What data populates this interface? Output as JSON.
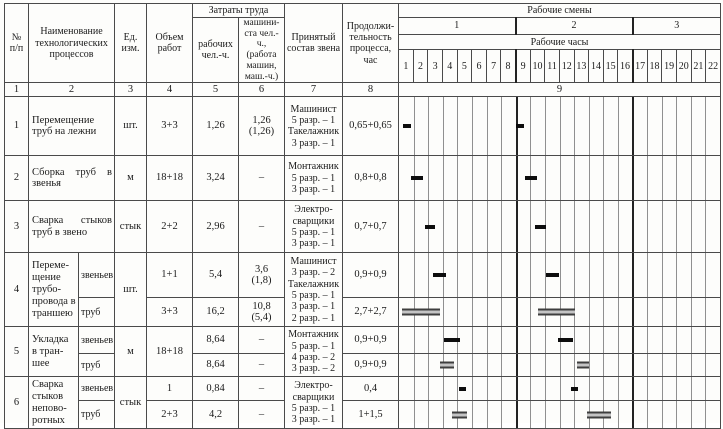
{
  "header": {
    "col_num": "№\nп/п",
    "col_name": "Наименование\nтехнологических\nпроцессов",
    "col_unit": "Ед.\nизм.",
    "col_volume": "Объем\nработ",
    "labor_group": "Затраты труда",
    "col_workers": "рабочих\nчел.-ч.",
    "col_machinist": "машини-\nста чел.-ч.,\n(работа\nмашин,\nмаш.-ч.)",
    "col_crew": "Принятый\nсостав звена",
    "col_duration": "Продолжи-\nтельность\nпроцесса,\nчас",
    "shifts_group": "Рабочие смены",
    "shifts": [
      "1",
      "2",
      "3"
    ],
    "hours_group": "Рабочие часы",
    "hours": [
      "1",
      "2",
      "3",
      "4",
      "5",
      "6",
      "7",
      "8",
      "9",
      "10",
      "11",
      "12",
      "13",
      "14",
      "15",
      "16",
      "17",
      "18",
      "19",
      "20",
      "21",
      "22"
    ],
    "col_numbers": [
      "1",
      "2",
      "3",
      "4",
      "5",
      "6",
      "7",
      "8",
      "9"
    ]
  },
  "rows": {
    "r1": {
      "num": "1",
      "name": "Перемещение труб на лежни",
      "unit": "шт.",
      "volume": "3+3",
      "workers": "1,26",
      "machinist": "1,26\n(1,26)",
      "crew": "Машинист\n5 разр. – 1\nТакелажник\n3 разр. – 1",
      "duration": "0,65+0,65"
    },
    "r2": {
      "num": "2",
      "name": "Сборка труб в звенья",
      "unit": "м",
      "volume": "18+18",
      "workers": "3,24",
      "machinist": "–",
      "crew": "Монтажник\n5 разр. – 1\n3 разр. – 1",
      "duration": "0,8+0,8"
    },
    "r3": {
      "num": "3",
      "name": "Сварка стыков труб в звено",
      "unit": "стык",
      "volume": "2+2",
      "workers": "2,96",
      "machinist": "–",
      "crew": "Электро-\nсварщики\n5 разр. – 1\n3 разр. – 1",
      "duration": "0,7+0,7"
    },
    "r4a": {
      "num": "4",
      "name": "Переме-\nщение\nтрубо-\nпровода в\nтраншею",
      "sub": "звеньев",
      "unit": "шт.",
      "volume": "1+1",
      "workers": "5,4",
      "machinist": "3,6\n(1,8)",
      "crew": "Машинист\n3 разр. – 2\nТакелажник\n5 разр. – 1\n3 разр. – 1\n2 разр. – 1",
      "duration": "0,9+0,9"
    },
    "r4b": {
      "sub": "труб",
      "volume": "3+3",
      "workers": "16,2",
      "machinist": "10,8\n(5,4)",
      "duration": "2,7+2,7"
    },
    "r5a": {
      "num": "5",
      "name": "Укладка\nв тран-\nшее",
      "sub": "звеньев",
      "unit": "м",
      "volume": "18+18",
      "workers": "8,64",
      "machinist": "–",
      "crew": "Монтажник\n5 разр. – 1\n4 разр. – 2\n3 разр. – 2",
      "duration": "0,9+0,9"
    },
    "r5b": {
      "sub": "труб",
      "workers": "8,64",
      "machinist": "–",
      "duration": "0,9+0,9"
    },
    "r6a": {
      "num": "6",
      "name": "Сварка\nстыков\nнепово-\nротных",
      "sub": "звеньев",
      "unit": "стык",
      "volume": "1",
      "workers": "0,84",
      "machinist": "–",
      "crew": "Электро-\nсварщики\n5 разр. – 1\n3 разр. – 1",
      "duration": "0,4"
    },
    "r6b": {
      "sub": "труб",
      "volume": "2+3",
      "workers": "4,2",
      "machinist": "–",
      "duration": "1+1,5"
    }
  },
  "gantt": {
    "hours_total": 22,
    "shift_boundaries": [
      8,
      16
    ],
    "bars": {
      "r1": [
        {
          "s": 0.25,
          "w": 0.6,
          "t": 1
        },
        {
          "s": 8.0,
          "w": 0.6,
          "t": 1
        }
      ],
      "r2": [
        {
          "s": 0.85,
          "w": 0.8,
          "t": 1
        },
        {
          "s": 8.65,
          "w": 0.8,
          "t": 1
        }
      ],
      "r3": [
        {
          "s": 1.75,
          "w": 0.7,
          "t": 1
        },
        {
          "s": 9.35,
          "w": 0.75,
          "t": 1
        }
      ],
      "r4a": [
        {
          "s": 2.35,
          "w": 0.9,
          "t": 1
        },
        {
          "s": 10.1,
          "w": 0.85,
          "t": 1
        }
      ],
      "r4b": [
        {
          "s": 0.2,
          "w": 2.6,
          "t": 2
        },
        {
          "s": 9.55,
          "w": 2.5,
          "t": 2
        }
      ],
      "r5a": [
        {
          "s": 3.1,
          "w": 1.1,
          "t": 1
        },
        {
          "s": 10.9,
          "w": 1.0,
          "t": 1
        }
      ],
      "r5b": [
        {
          "s": 2.8,
          "w": 1.0,
          "t": 2
        },
        {
          "s": 12.2,
          "w": 0.85,
          "t": 2
        }
      ],
      "r6a": [
        {
          "s": 4.1,
          "w": 0.5,
          "t": 1
        },
        {
          "s": 11.8,
          "w": 0.45,
          "t": 1
        }
      ],
      "r6b": [
        {
          "s": 3.65,
          "w": 1.0,
          "t": 2
        },
        {
          "s": 12.9,
          "w": 1.6,
          "t": 2
        }
      ]
    }
  }
}
